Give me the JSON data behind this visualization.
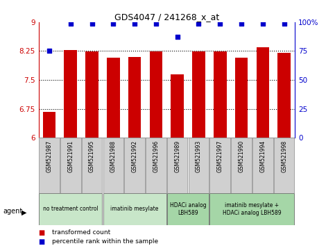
{
  "title": "GDS4047 / 241268_x_at",
  "samples": [
    "GSM521987",
    "GSM521991",
    "GSM521995",
    "GSM521988",
    "GSM521992",
    "GSM521996",
    "GSM521989",
    "GSM521993",
    "GSM521997",
    "GSM521990",
    "GSM521994",
    "GSM521998"
  ],
  "bar_values": [
    6.67,
    8.28,
    8.24,
    8.08,
    8.1,
    8.24,
    7.64,
    8.24,
    8.24,
    8.08,
    8.35,
    8.2
  ],
  "dot_values": [
    75,
    99,
    99,
    99,
    99,
    99,
    87,
    99,
    99,
    99,
    99,
    99
  ],
  "ylim": [
    6,
    9
  ],
  "yticks": [
    6,
    6.75,
    7.5,
    8.25,
    9
  ],
  "ytick_labels": [
    "6",
    "6.75",
    "7.5",
    "8.25",
    "9"
  ],
  "right_yticks": [
    0,
    25,
    50,
    75,
    100
  ],
  "right_ytick_labels": [
    "0",
    "25",
    "50",
    "75",
    "100%"
  ],
  "bar_color": "#cc0000",
  "dot_color": "#0000cc",
  "plot_bg": "#ffffff",
  "groups": [
    {
      "label": "no treatment control",
      "start": 0,
      "end": 3,
      "color": "#c8e6c9"
    },
    {
      "label": "imatinib mesylate",
      "start": 3,
      "end": 6,
      "color": "#c8e6c9"
    },
    {
      "label": "HDACi analog\nLBH589",
      "start": 6,
      "end": 8,
      "color": "#a5d6a7"
    },
    {
      "label": "imatinib mesylate +\nHDACi analog LBH589",
      "start": 8,
      "end": 12,
      "color": "#a5d6a7"
    }
  ],
  "agent_label": "agent",
  "legend_bar_label": "transformed count",
  "legend_dot_label": "percentile rank within the sample",
  "hlines": [
    6.75,
    7.5,
    8.25
  ]
}
